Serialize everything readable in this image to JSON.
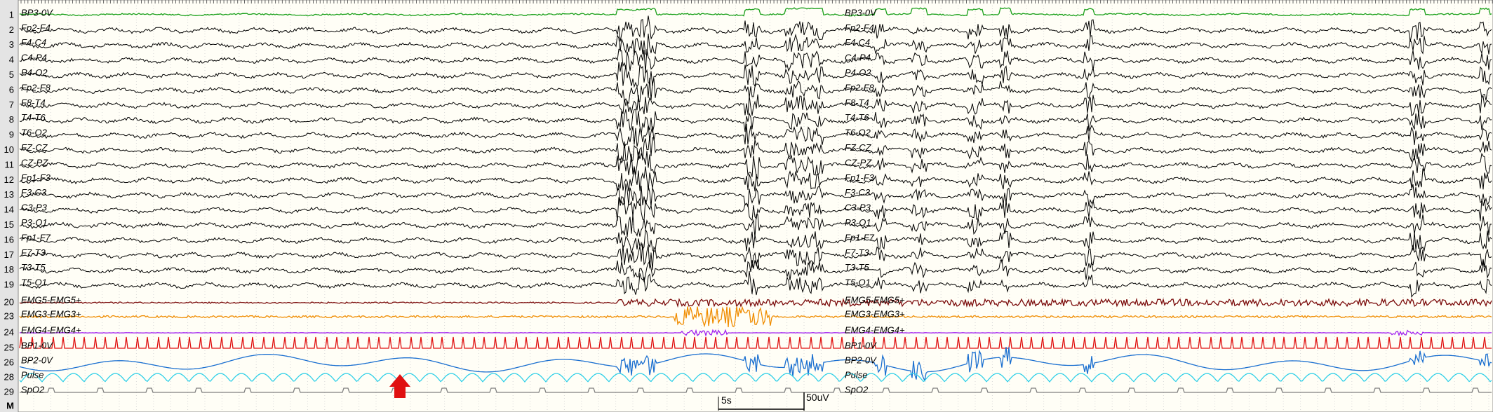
{
  "channels": [
    {
      "number": "1",
      "label": "BP3-0V",
      "color": "#1aa01a"
    },
    {
      "number": "2",
      "label": "Fp2-F4",
      "color": "#000000"
    },
    {
      "number": "3",
      "label": "F4-C4",
      "color": "#000000"
    },
    {
      "number": "4",
      "label": "C4-P4",
      "color": "#000000"
    },
    {
      "number": "5",
      "label": "P4-O2",
      "color": "#000000"
    },
    {
      "number": "6",
      "label": "Fp2-F8",
      "color": "#000000"
    },
    {
      "number": "7",
      "label": "F8-T4",
      "color": "#000000"
    },
    {
      "number": "8",
      "label": "T4-T6",
      "color": "#000000"
    },
    {
      "number": "9",
      "label": "T6-O2",
      "color": "#000000"
    },
    {
      "number": "10",
      "label": "FZ-CZ",
      "color": "#000000"
    },
    {
      "number": "11",
      "label": "CZ-PZ",
      "color": "#000000"
    },
    {
      "number": "12",
      "label": "Fp1-F3",
      "color": "#000000"
    },
    {
      "number": "13",
      "label": "F3-C3",
      "color": "#000000"
    },
    {
      "number": "14",
      "label": "C3-P3",
      "color": "#000000"
    },
    {
      "number": "15",
      "label": "P3-O1",
      "color": "#000000"
    },
    {
      "number": "16",
      "label": "Fp1-F7",
      "color": "#000000"
    },
    {
      "number": "17",
      "label": "F7-T3",
      "color": "#000000"
    },
    {
      "number": "18",
      "label": "T3-T5",
      "color": "#000000"
    },
    {
      "number": "19",
      "label": "T5-O1",
      "color": "#000000"
    },
    {
      "number": "20",
      "label": "EMG5-EMG5+",
      "color": "#7a0a0a"
    },
    {
      "number": "23",
      "label": "EMG3-EMG3+",
      "color": "#f08c00"
    },
    {
      "number": "24",
      "label": "EMG4-EMG4+",
      "color": "#a020f0"
    },
    {
      "number": "25",
      "label": "BP1-0V",
      "color": "#e01010"
    },
    {
      "number": "26",
      "label": "BP2-0V",
      "color": "#1a6fd0"
    },
    {
      "number": "28",
      "label": "Pulse",
      "color": "#30d0e8"
    },
    {
      "number": "29",
      "label": "SpO2",
      "color": "#808080"
    }
  ],
  "marker": "M",
  "scale": {
    "time": "5s",
    "amplitude": "50uV"
  }
}
